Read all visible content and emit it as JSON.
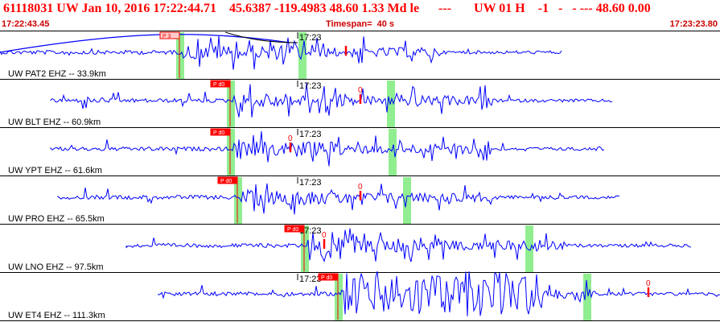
{
  "header": {
    "title": "61118031 UW Jan 10, 2016 17:22:44.71    45.6387 -119.4983 48.60 1.33 Md le      ---       UW 01 H    -1   -   - --- 48.60 0.00",
    "start_time": "17:22:43.45",
    "timespan": "Timespan=  40 s",
    "end_time": "17:23:23.80"
  },
  "colors": {
    "waveform": "#0000ff",
    "pick": "#ff0000",
    "window": "#90ee90",
    "label_text": "#000000",
    "border": "#000000"
  },
  "traces": [
    {
      "label": "UW PAT2 EHZ -- 33.9km",
      "pick_label": "P 3",
      "pick_style": "outline",
      "minute_label": "17:23",
      "has_curve": true,
      "waveform_ranges": [
        [
          0.0,
          0.78
        ]
      ],
      "windows": [
        0.245,
        0.415
      ],
      "extra_picks": [
        0.48
      ],
      "zero_labels": []
    },
    {
      "label": "UW BLT EHZ -- 60.9km",
      "pick_label": "P d0",
      "pick_style": "filled",
      "minute_label": "17:23",
      "has_curve": false,
      "waveform_ranges": [
        [
          0.07,
          0.85
        ]
      ],
      "windows": [
        0.315,
        0.537
      ],
      "extra_picks": [
        0.5
      ],
      "zero_labels": [
        "0"
      ]
    },
    {
      "label": "UW YPT EHZ -- 61.6km",
      "pick_label": "P d0",
      "pick_style": "filled",
      "minute_label": "17:23",
      "has_curve": false,
      "waveform_ranges": [
        [
          0.07,
          0.84
        ]
      ],
      "windows": [
        0.315,
        0.54
      ],
      "extra_picks": [
        0.403
      ],
      "zero_labels": [
        "0"
      ]
    },
    {
      "label": "UW PRO EHZ -- 65.5km",
      "pick_label": "P d0",
      "pick_style": "filled",
      "minute_label": "17:23",
      "has_curve": false,
      "waveform_ranges": [
        [
          0.08,
          0.86
        ]
      ],
      "windows": [
        0.325,
        0.56
      ],
      "extra_picks": [
        0.5
      ],
      "zero_labels": [
        "0"
      ]
    },
    {
      "label": "UW LNO EHZ -- 97.5km",
      "pick_label": "P d0",
      "pick_style": "filled",
      "minute_label": "17:23",
      "has_curve": false,
      "waveform_ranges": [
        [
          0.175,
          0.96
        ]
      ],
      "windows": [
        0.418,
        0.73
      ],
      "extra_picks": [
        0.45
      ],
      "zero_labels": [
        "0"
      ]
    },
    {
      "label": "UW ET4 EHZ -- 111.3km",
      "pick_label": "P d0",
      "pick_style": "filled",
      "minute_label": "17:23",
      "has_curve": false,
      "waveform_ranges": [
        [
          0.22,
          1.0
        ]
      ],
      "windows": [
        0.465,
        0.81
      ],
      "extra_picks": [
        0.9
      ],
      "zero_labels": [
        "0"
      ]
    }
  ]
}
